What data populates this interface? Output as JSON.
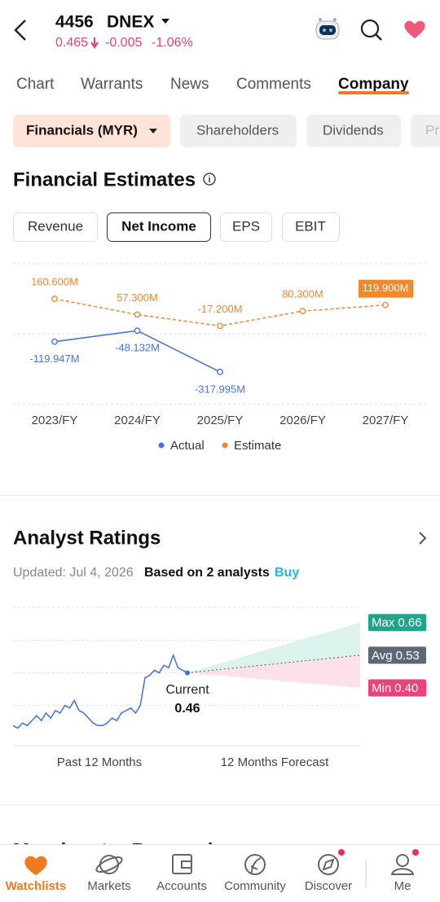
{
  "header": {
    "symbol": "4456",
    "name": "DNEX",
    "price": "0.465",
    "change": "-0.005",
    "change_percent": "-1.06%"
  },
  "tabs": {
    "items": [
      "Chart",
      "Warrants",
      "News",
      "Comments",
      "Company"
    ],
    "active": 4
  },
  "sections": {
    "items": [
      "Financials (MYR)",
      "Shareholders",
      "Dividends",
      "Pr"
    ],
    "active": 0
  },
  "estimates": {
    "title": "Financial Estimates",
    "metrics": {
      "items": [
        "Revenue",
        "Net Income",
        "EPS",
        "EBIT"
      ],
      "active": 1
    },
    "chart": {
      "type": "line",
      "categories": [
        "2023/FY",
        "2024/FY",
        "2025/FY",
        "2026/FY",
        "2027/FY"
      ],
      "series": [
        {
          "name": "Actual",
          "color": "#4a74dd",
          "style": "solid",
          "values": [
            -119.947,
            -48.132,
            -317.995,
            null,
            null
          ],
          "value_labels": [
            "-119.947M",
            "-48.132M",
            "-317.995M",
            null,
            null
          ]
        },
        {
          "name": "Estimate",
          "color": "#ee8a2e",
          "style": "dashed",
          "values": [
            160.6,
            57.3,
            -17.2,
            80.3,
            119.9
          ],
          "value_labels": [
            "160.600M",
            "57.300M",
            "-17.200M",
            "80.300M",
            "119.900M"
          ]
        }
      ],
      "ylim": [
        -530,
        390
      ],
      "yticks": [
        -530,
        -70,
        390
      ],
      "grid": true
    }
  },
  "ratings": {
    "title": "Analyst Ratings",
    "updated": "Updated: Jul 4, 2026",
    "basis": "Based on 2 analysts",
    "consensus": "Buy",
    "chart": {
      "type": "line",
      "color": "#3f6fe0",
      "prices": [
        0.25,
        0.24,
        0.26,
        0.25,
        0.27,
        0.29,
        0.27,
        0.3,
        0.28,
        0.31,
        0.3,
        0.33,
        0.32,
        0.35,
        0.31,
        0.3,
        0.28,
        0.26,
        0.25,
        0.25,
        0.26,
        0.28,
        0.27,
        0.3,
        0.31,
        0.32,
        0.3,
        0.33,
        0.44,
        0.45,
        0.47,
        0.46,
        0.49,
        0.48,
        0.53,
        0.48,
        0.47,
        0.46
      ],
      "current": {
        "label": "Current",
        "value": 0.46
      },
      "targets": [
        {
          "name": "Max",
          "value": 0.66,
          "color": "#1fa38a"
        },
        {
          "name": "Avg",
          "value": 0.53,
          "color": "#5d6877"
        },
        {
          "name": "Min",
          "value": 0.4,
          "value_label": "0.40",
          "color": "#e8437a"
        }
      ],
      "ylim": [
        0.17,
        0.74
      ],
      "yticks": [
        0.33,
        0.46,
        0.59,
        0.72
      ],
      "grid": true,
      "x_labels": [
        "Past 12 Months",
        "12 Months Forecast"
      ]
    }
  },
  "morningstar": {
    "title": "Morningstar Research"
  },
  "nav": {
    "items": [
      {
        "label": "Watchlists",
        "badge": false
      },
      {
        "label": "Markets",
        "badge": false
      },
      {
        "label": "Accounts",
        "badge": false
      },
      {
        "label": "Community",
        "badge": false
      },
      {
        "label": "Discover",
        "badge": true
      },
      {
        "label": "Me",
        "badge": true
      }
    ],
    "active": 0
  }
}
